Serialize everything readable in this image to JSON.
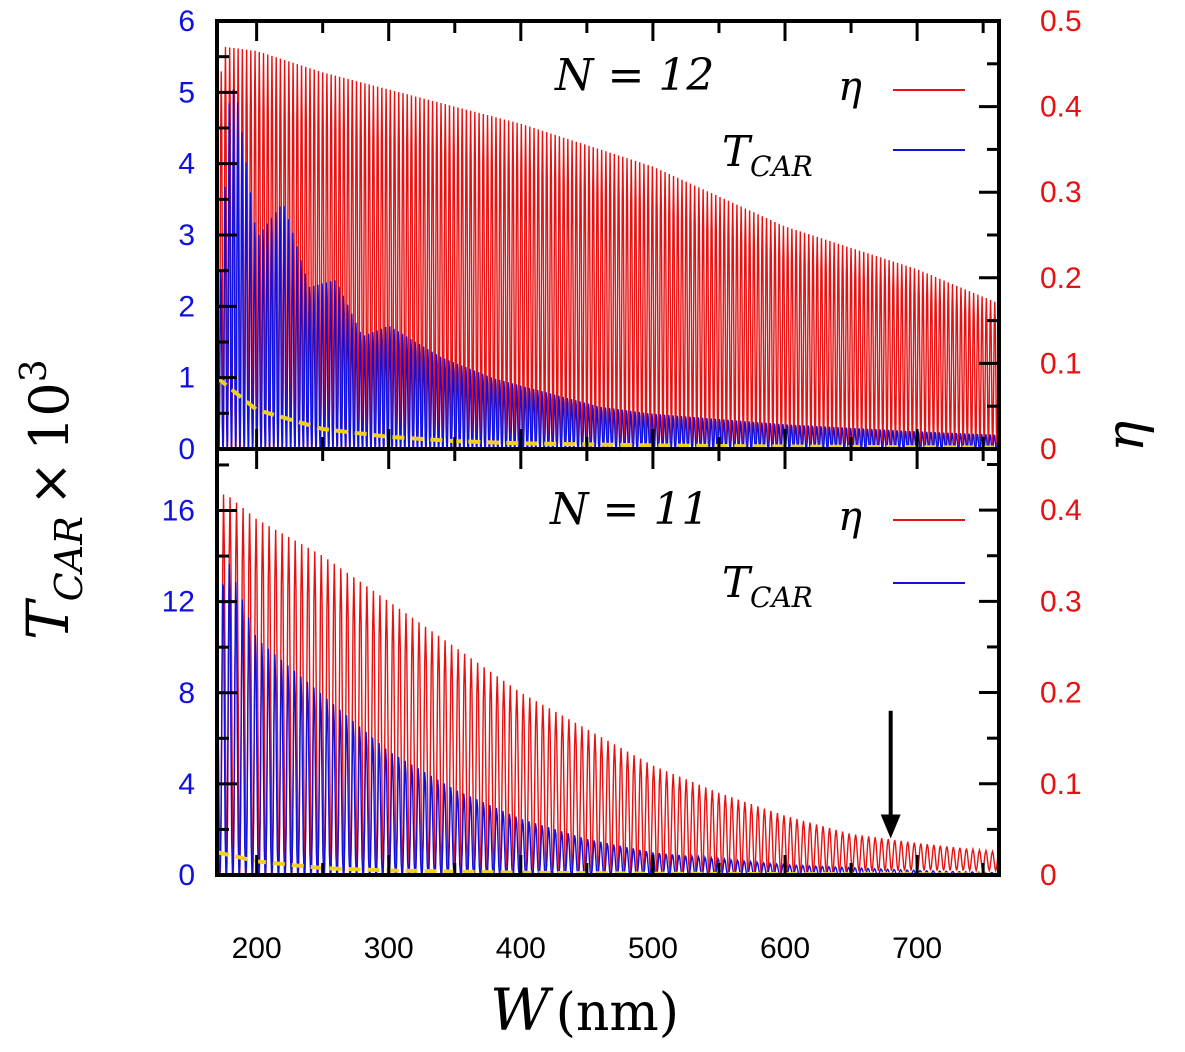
{
  "chart_data": {
    "type": "line",
    "x_axis": {
      "label_main": "W",
      "label_unit": "(nm)",
      "range": [
        170,
        762
      ],
      "ticks": [
        200,
        300,
        400,
        500,
        600,
        700
      ]
    },
    "left_axis_label": {
      "main": "T",
      "sub": "CAR",
      "times": "×",
      "base": "10",
      "exp": "3"
    },
    "right_axis_label": "η",
    "colors": {
      "eta": "#e81010",
      "tcar": "#1010e0",
      "fit": "#f2d020",
      "frame": "#000000"
    },
    "panels": [
      {
        "name": "top",
        "annotation": "N = 12",
        "legend": [
          {
            "label": "η",
            "series": "eta"
          },
          {
            "label_main": "T",
            "label_sub": "CAR",
            "series": "tcar"
          }
        ],
        "left_ylim": [
          0,
          6
        ],
        "left_ticks": [
          0,
          1,
          2,
          3,
          4,
          5,
          6
        ],
        "right_ylim": [
          0,
          0.5
        ],
        "right_ticks": [
          "0",
          "0.1",
          "0.2",
          "0.3",
          "0.4",
          "0.5"
        ],
        "eta_envelope": {
          "x": [
            170,
            175,
            200,
            250,
            300,
            400,
            500,
            600,
            700,
            762
          ],
          "max": [
            0.39,
            0.47,
            0.465,
            0.44,
            0.42,
            0.38,
            0.33,
            0.26,
            0.21,
            0.17
          ],
          "min": [
            0,
            0,
            0,
            0,
            0,
            0,
            0,
            0,
            0,
            0
          ]
        },
        "tcar_envelope": {
          "x": [
            170,
            180,
            185,
            200,
            220,
            240,
            260,
            280,
            300,
            340,
            380,
            420,
            460,
            500,
            600,
            700,
            762
          ],
          "max": [
            1.5,
            5.2,
            5.0,
            3.0,
            3.5,
            2.3,
            2.4,
            1.6,
            1.75,
            1.3,
            1.0,
            0.8,
            0.6,
            0.5,
            0.35,
            0.25,
            0.2
          ]
        },
        "fit_curve": {
          "x": [
            170,
            200,
            250,
            300,
            350,
            400,
            500,
            600,
            700,
            762
          ],
          "y": [
            1.0,
            0.55,
            0.28,
            0.17,
            0.11,
            0.08,
            0.05,
            0.035,
            0.025,
            0.02
          ]
        },
        "oscillation_count": 185
      },
      {
        "name": "bottom",
        "annotation": "N = 11",
        "legend": [
          {
            "label": "η",
            "series": "eta"
          },
          {
            "label_main": "T",
            "label_sub": "CAR",
            "series": "tcar"
          }
        ],
        "left_ylim": [
          0,
          18.7
        ],
        "left_ticks": [
          0,
          4,
          8,
          12,
          16
        ],
        "right_ylim": [
          0,
          0.467
        ],
        "right_ticks": [
          "0",
          "0.1",
          "0.2",
          "0.3",
          "0.4"
        ],
        "eta_envelope": {
          "x": [
            170,
            175,
            200,
            250,
            300,
            350,
            400,
            450,
            500,
            550,
            600,
            650,
            700,
            762
          ],
          "max": [
            0.2,
            0.42,
            0.39,
            0.35,
            0.3,
            0.25,
            0.2,
            0.16,
            0.12,
            0.09,
            0.065,
            0.045,
            0.035,
            0.025
          ],
          "min": [
            0,
            0,
            0,
            0,
            0,
            0,
            0,
            0,
            0,
            0,
            0.002,
            0.004,
            0.005,
            0.005
          ]
        },
        "tcar_envelope": {
          "x": [
            170,
            175,
            200,
            250,
            300,
            350,
            400,
            450,
            500,
            600,
            700,
            762
          ],
          "max": [
            3,
            14.5,
            10.5,
            8,
            5.5,
            3.8,
            2.5,
            1.6,
            1.0,
            0.45,
            0.2,
            0.1
          ]
        },
        "fit_curve": {
          "x": [
            170,
            200,
            250,
            300,
            400,
            500,
            600,
            700,
            762
          ],
          "y": [
            1.0,
            0.6,
            0.3,
            0.2,
            0.1,
            0.06,
            0.04,
            0.03,
            0.025
          ]
        },
        "oscillation_count": 120,
        "arrow_x": 680,
        "arrow_from_eta": 0.18,
        "arrow_to_eta": 0.04
      }
    ]
  }
}
